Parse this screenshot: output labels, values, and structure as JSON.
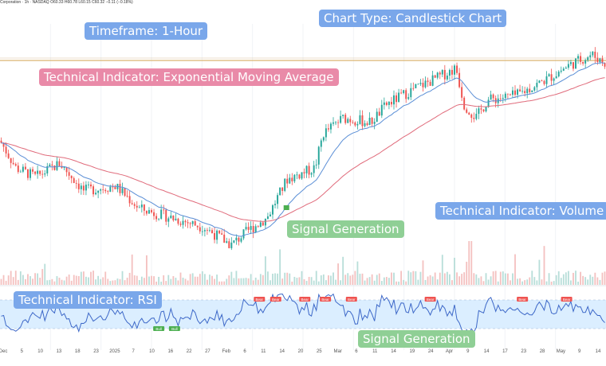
{
  "header": {
    "symbol": "Corporation · 1h · NASDAQ",
    "ohlc": "O60.33 H60.78 L60.15 C60.32 −0.11 (−0.18%)"
  },
  "annotations": {
    "timeframe": "Timeframe: 1-Hour",
    "chart_type": "Chart Type: Candlestick Chart",
    "ema": "Technical Indicator: Exponential Moving Average",
    "volume": "Technical Indicator: Volume",
    "rsi": "Technical Indicator: RSI",
    "signal_price": "Signal Generation",
    "signal_rsi": "Signal Generation"
  },
  "colors": {
    "up": "#26a69a",
    "down": "#ef5350",
    "ema_fast": "#5b8fd6",
    "ema_slow": "#e06b7b",
    "rsi_line": "#3d68c8",
    "rsi_band": "#dbeeff",
    "bull_tag": "#4caf50",
    "bear_tag": "#ef5350"
  },
  "chart_data": {
    "type": "candlestick",
    "x_ticks": [
      "Dec",
      "5",
      "10",
      "13",
      "18",
      "23",
      "2025",
      "7",
      "10",
      "16",
      "22",
      "27",
      "Feb",
      "6",
      "11",
      "14",
      "20",
      "25",
      "Mar",
      "6",
      "11",
      "14",
      "19",
      "24",
      "Apr",
      "9",
      "14",
      "17",
      "23",
      "28",
      "May",
      "9",
      "14"
    ],
    "series": [
      {
        "name": "",
        "kind": "price"
      },
      {
        "name": "",
        "kind": "ema_fast"
      },
      {
        "name": "",
        "kind": "ema_slow"
      },
      {
        "name": "",
        "kind": "volume"
      },
      {
        "name": "",
        "kind": "rsi"
      }
    ],
    "price_anchors": [
      [
        0,
        52
      ],
      [
        20,
        40
      ],
      [
        45,
        36
      ],
      [
        75,
        42
      ],
      [
        105,
        30
      ],
      [
        145,
        32
      ],
      [
        175,
        22
      ],
      [
        215,
        18
      ],
      [
        255,
        14
      ],
      [
        290,
        6
      ],
      [
        310,
        12
      ],
      [
        335,
        18
      ],
      [
        360,
        35
      ],
      [
        395,
        40
      ],
      [
        405,
        55
      ],
      [
        430,
        62
      ],
      [
        465,
        60
      ],
      [
        485,
        68
      ],
      [
        520,
        75
      ],
      [
        550,
        80
      ],
      [
        572,
        84
      ],
      [
        582,
        68
      ],
      [
        597,
        62
      ],
      [
        612,
        70
      ],
      [
        648,
        72
      ],
      [
        690,
        80
      ],
      [
        712,
        85
      ],
      [
        742,
        90
      ],
      [
        760,
        86
      ]
    ],
    "rsi_signals": [
      {
        "label": "Bull",
        "type": "bull",
        "at": 0.262
      },
      {
        "label": "Bull",
        "type": "bull",
        "at": 0.288
      },
      {
        "label": "Bear",
        "type": "bear",
        "at": 0.428
      },
      {
        "label": "Bear",
        "type": "bear",
        "at": 0.455
      },
      {
        "label": "Bear",
        "type": "bear",
        "at": 0.503
      },
      {
        "label": "Bear",
        "type": "bear",
        "at": 0.537
      },
      {
        "label": "Bear",
        "type": "bear",
        "at": 0.58
      },
      {
        "label": "Bear",
        "type": "bear",
        "at": 0.71
      },
      {
        "label": "Bear",
        "type": "bear",
        "at": 0.862
      },
      {
        "label": "Bear",
        "type": "bear",
        "at": 0.935
      }
    ],
    "price_signal_marker_at": 0.472,
    "grid": true
  }
}
